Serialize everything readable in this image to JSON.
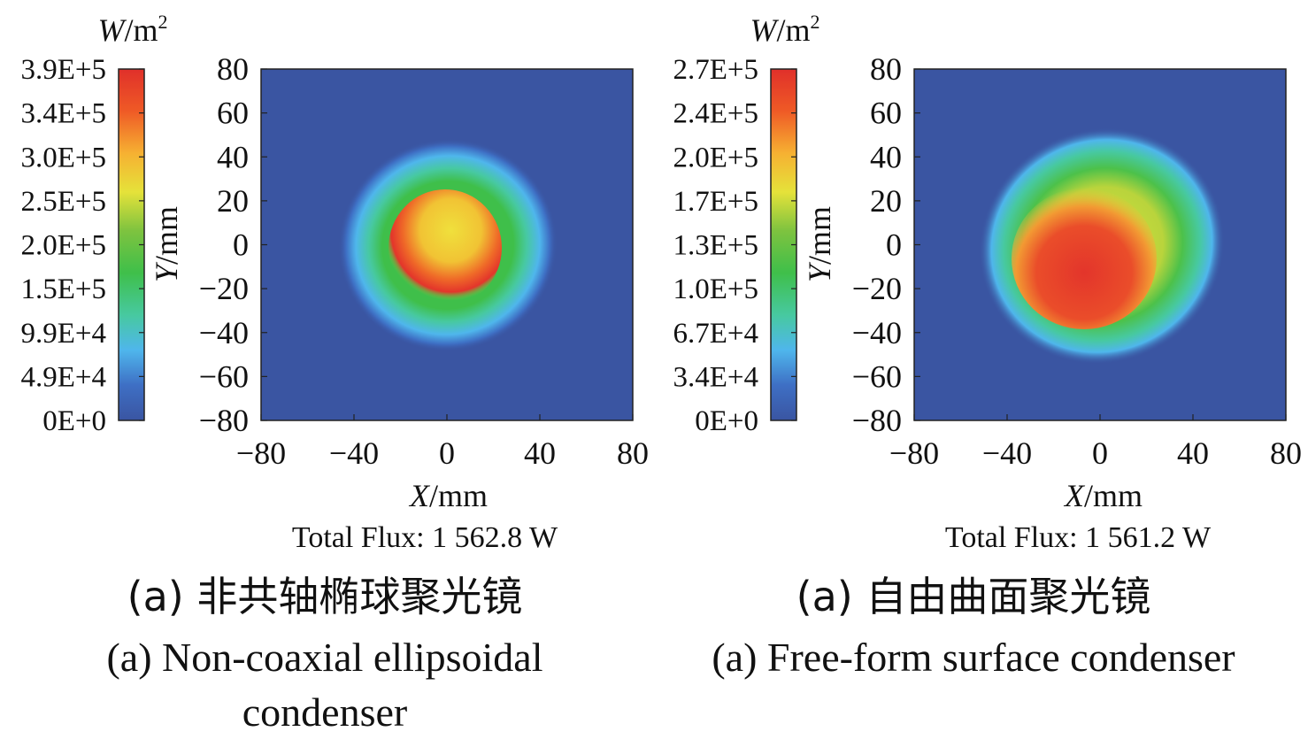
{
  "chart_data": [
    {
      "type": "heatmap",
      "colorbar": {
        "unit_var": "W",
        "unit_rest": "/m",
        "unit_exp": "2",
        "ticks": [
          "3.9E+5",
          "3.4E+5",
          "3.0E+5",
          "2.5E+5",
          "2.0E+5",
          "1.5E+5",
          "9.9E+4",
          "4.9E+4",
          "0E+0"
        ],
        "range": [
          0,
          390000
        ]
      },
      "x_ticks": [
        "−80",
        "−40",
        "0",
        "40",
        "80"
      ],
      "y_ticks": [
        "80",
        "60",
        "40",
        "20",
        "0",
        "−20",
        "−40",
        "−60",
        "−80"
      ],
      "xlim": [
        -80,
        80
      ],
      "ylim": [
        -80,
        80
      ],
      "xlabel_var": "X",
      "xlabel_unit": "/mm",
      "ylabel_var": "Y",
      "ylabel_unit": "/mm",
      "flux_label": "Total Flux: 1 562.8 W",
      "caption_cn": "(a) 非共轴椭球聚光镜",
      "caption_en_line1": "(a) Non-coaxial ellipsoidal",
      "caption_en_line2": "condenser",
      "spot": {
        "center_x_mm": -2,
        "center_y_mm": -2,
        "peak_x_mm": -8,
        "peak_y_mm": -12,
        "outer_radius_x_mm": 47,
        "outer_radius_y_mm": 45
      },
      "background_color": "#3a55a2"
    },
    {
      "type": "heatmap",
      "colorbar": {
        "unit_var": "W",
        "unit_rest": "/m",
        "unit_exp": "2",
        "ticks": [
          "2.7E+5",
          "2.4E+5",
          "2.0E+5",
          "1.7E+5",
          "1.3E+5",
          "1.0E+5",
          "6.7E+4",
          "3.4E+4",
          "0E+0"
        ],
        "range": [
          0,
          270000
        ]
      },
      "x_ticks": [
        "−80",
        "−40",
        "0",
        "40",
        "80"
      ],
      "y_ticks": [
        "80",
        "60",
        "40",
        "20",
        "0",
        "−20",
        "−40",
        "−60",
        "−80"
      ],
      "xlim": [
        -80,
        80
      ],
      "ylim": [
        -80,
        80
      ],
      "xlabel_var": "X",
      "xlabel_unit": "/mm",
      "ylabel_var": "Y",
      "ylabel_unit": "/mm",
      "flux_label": "Total Flux: 1 561.2 W",
      "caption_cn": "(a) 自由曲面聚光镜",
      "caption_en_line1": "(a) Free-form surface condenser",
      "caption_en_line2": "",
      "spot": {
        "center_x_mm": 0,
        "center_y_mm": -5,
        "peak_x_mm": -8,
        "peak_y_mm": -12,
        "outer_radius_x_mm": 55,
        "outer_radius_y_mm": 58
      },
      "background_color": "#3a55a2"
    }
  ]
}
